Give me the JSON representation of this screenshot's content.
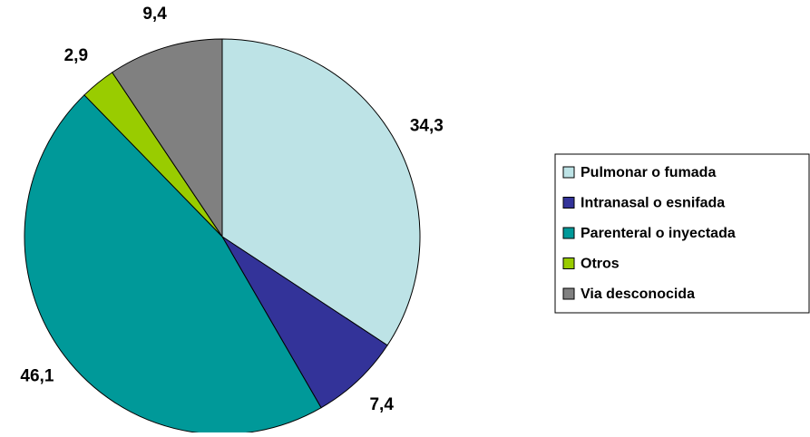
{
  "chart_data": {
    "type": "pie",
    "categories": [
      "Pulmonar o fumada",
      "Intranasal o esnifada",
      "Parenteral o inyectada",
      "Otros",
      "Via desconocida"
    ],
    "values": [
      34.3,
      7.4,
      46.1,
      2.9,
      9.4
    ],
    "value_labels": [
      "34,3",
      "7,4",
      "46,1",
      "2,9",
      "9,4"
    ],
    "colors": [
      "#bde3e6",
      "#333399",
      "#009999",
      "#99cc00",
      "#808080"
    ],
    "legend": "right"
  }
}
